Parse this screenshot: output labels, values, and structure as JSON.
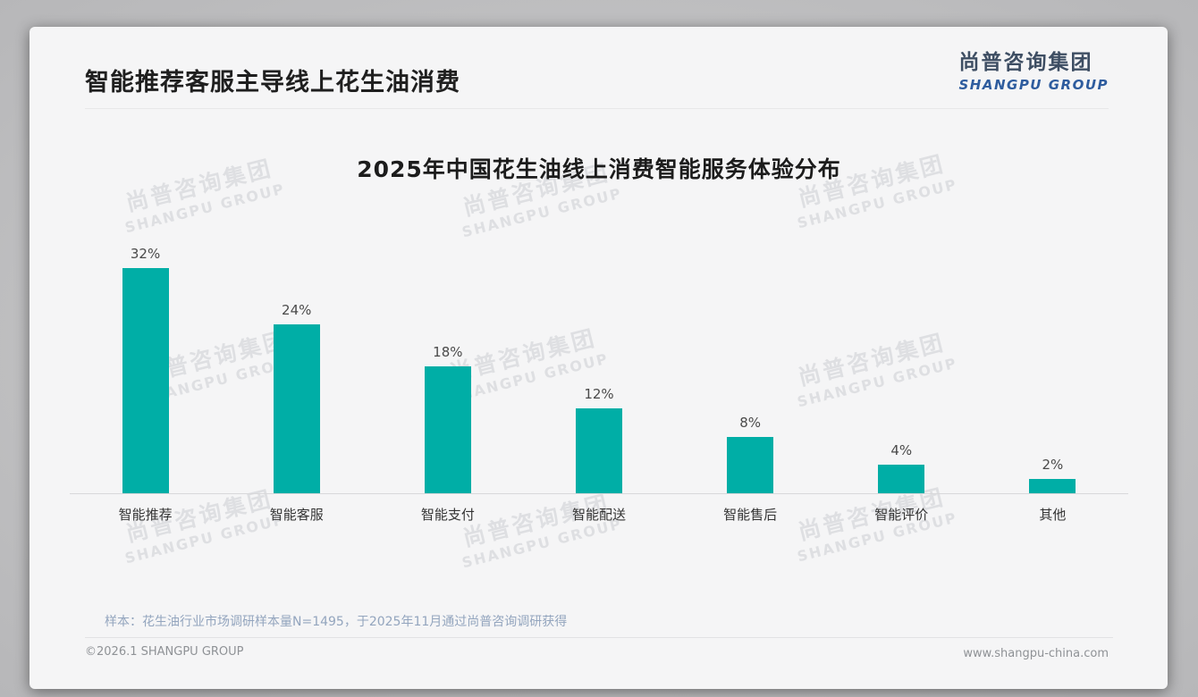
{
  "page": {
    "title": "智能推荐客服主导线上花生油消费",
    "logo": {
      "cn": "尚普咨询集团",
      "en": "SHANGPU GROUP"
    },
    "watermark": {
      "cn": "尚普咨询集团",
      "en": "SHANGPU GROUP"
    },
    "note": "样本：花生油行业市场调研样本量N=1495，于2025年11月通过尚普咨询调研获得",
    "footer": {
      "left": "©2026.1 SHANGPU GROUP",
      "right": "www.shangpu-china.com"
    }
  },
  "chart_data": {
    "type": "bar",
    "title": "2025年中国花生油线上消费智能服务体验分布",
    "categories": [
      "智能推荐",
      "智能客服",
      "智能支付",
      "智能配送",
      "智能售后",
      "智能评价",
      "其他"
    ],
    "values": [
      32,
      24,
      18,
      12,
      8,
      4,
      2
    ],
    "data_labels": [
      "32%",
      "24%",
      "18%",
      "12%",
      "8%",
      "4%",
      "2%"
    ],
    "unit": "%",
    "bar_color": "#00aea6",
    "value_label_color": "#4a4a4a",
    "ylim": [
      0,
      33
    ],
    "grid": false,
    "legend": "none"
  }
}
